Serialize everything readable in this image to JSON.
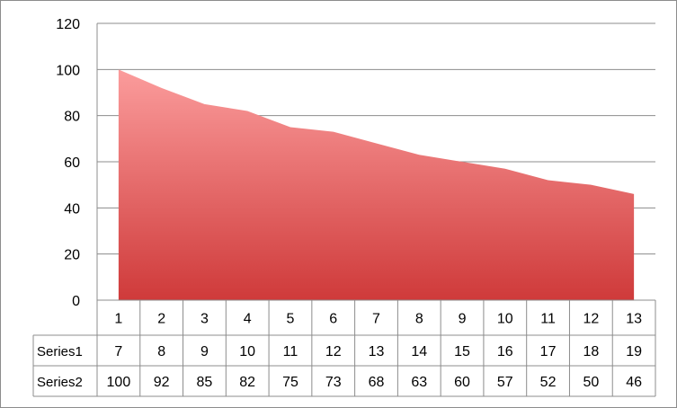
{
  "chart_data": {
    "type": "area",
    "categories": [
      "1",
      "2",
      "3",
      "4",
      "5",
      "6",
      "7",
      "8",
      "9",
      "10",
      "11",
      "12",
      "13"
    ],
    "series": [
      {
        "name": "Series1",
        "values": [
          7,
          8,
          9,
          10,
          11,
          12,
          13,
          14,
          15,
          16,
          17,
          18,
          19
        ],
        "plotted": false
      },
      {
        "name": "Series2",
        "values": [
          100,
          92,
          85,
          82,
          75,
          73,
          68,
          63,
          60,
          57,
          52,
          50,
          46
        ],
        "plotted": true
      }
    ],
    "ylim": [
      0,
      120
    ],
    "yticks": [
      0,
      20,
      40,
      60,
      80,
      100,
      120
    ],
    "grid": true,
    "data_table": true,
    "colors": {
      "area_top": "#fb9c9c",
      "area_bottom": "#cf3a3a",
      "grid": "#8c8c8c",
      "table_border": "#8c8c8c"
    }
  }
}
